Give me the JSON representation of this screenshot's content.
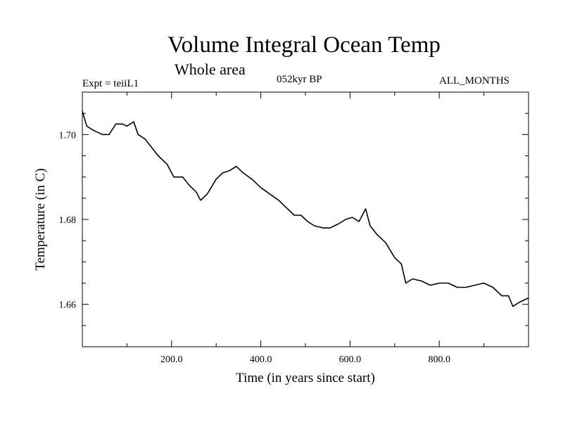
{
  "header": {
    "title": "Volume Integral Ocean Temp",
    "subtitle": "Whole area",
    "expt": "Expt = teiiL1",
    "period": "052kyr BP",
    "months": "ALL_MONTHS"
  },
  "chart_data": {
    "type": "line",
    "title": "Volume Integral Ocean Temp",
    "xlabel": "Time (in years since start)",
    "ylabel": "Temperature (in C)",
    "xlim": [
      0,
      1000
    ],
    "ylim": [
      1.65,
      1.71
    ],
    "xticks": [
      200,
      400,
      600,
      800
    ],
    "xtick_labels": [
      "200.0",
      "400.0",
      "600.0",
      "800.0"
    ],
    "yticks": [
      1.66,
      1.68,
      1.7
    ],
    "ytick_labels": [
      "1.66",
      "1.68",
      "1.70"
    ],
    "grid": false,
    "line_color": "#000000",
    "series": [
      {
        "x": [
          0,
          10,
          25,
          45,
          60,
          75,
          90,
          100,
          115,
          125,
          140,
          155,
          170,
          190,
          205,
          225,
          240,
          255,
          265,
          280,
          300,
          315,
          330,
          345,
          360,
          380,
          400,
          420,
          440,
          460,
          475,
          490,
          505,
          520,
          540,
          555,
          575,
          590,
          605,
          620,
          635,
          645,
          660,
          680,
          700,
          715,
          725,
          740,
          760,
          780,
          800,
          820,
          840,
          860,
          880,
          900,
          920,
          940,
          955,
          965,
          980,
          1000
        ],
        "y": [
          1.7055,
          1.702,
          1.701,
          1.7,
          1.7,
          1.7025,
          1.7025,
          1.702,
          1.703,
          1.7,
          1.699,
          1.697,
          1.695,
          1.693,
          1.69,
          1.69,
          1.688,
          1.6865,
          1.6845,
          1.686,
          1.6895,
          1.691,
          1.6915,
          1.6925,
          1.691,
          1.6895,
          1.6875,
          1.686,
          1.6845,
          1.6825,
          1.681,
          1.681,
          1.6795,
          1.6785,
          1.678,
          1.678,
          1.679,
          1.68,
          1.6805,
          1.6795,
          1.6825,
          1.6785,
          1.6765,
          1.6745,
          1.671,
          1.6695,
          1.665,
          1.666,
          1.6655,
          1.6645,
          1.665,
          1.665,
          1.664,
          1.664,
          1.6645,
          1.665,
          1.664,
          1.662,
          1.662,
          1.6595,
          1.6605,
          1.6615
        ]
      }
    ]
  }
}
